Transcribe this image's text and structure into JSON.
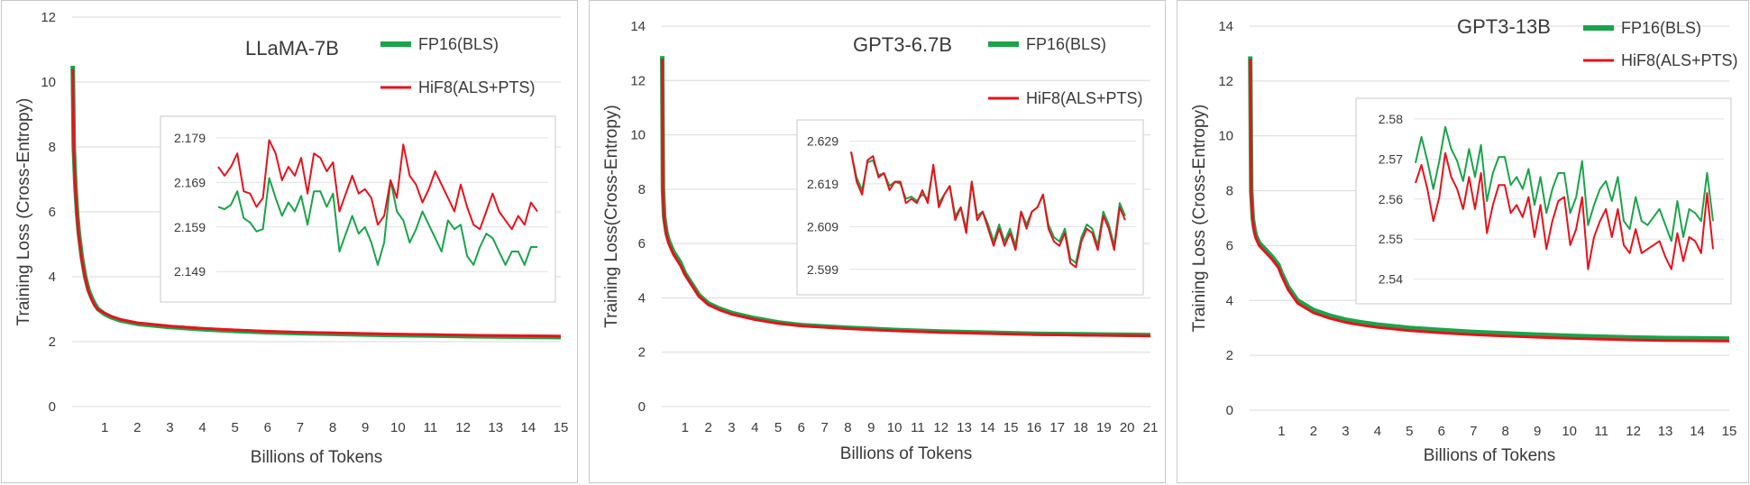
{
  "colors": {
    "fp16": "#1aa44a",
    "hif8": "#e8121b",
    "grid": "#d9d9d9",
    "axis_text": "#404040"
  },
  "chart_data": [
    {
      "type": "line",
      "title": "LLaMA-7B",
      "xlabel": "Billions of Tokens",
      "ylabel": "Training Loss (Cross-Entropy)",
      "xlim": [
        0,
        15
      ],
      "ylim": [
        0,
        12
      ],
      "xticks": [
        "1",
        "2",
        "3",
        "4",
        "5",
        "6",
        "7",
        "8",
        "9",
        "10",
        "11",
        "12",
        "13",
        "14",
        "15"
      ],
      "yticks": [
        "0",
        "2",
        "4",
        "6",
        "8",
        "10",
        "12"
      ],
      "legend_position": "top-right",
      "series": [
        {
          "name": "FP16(BLS)",
          "key": "fp16",
          "x": [
            0.02,
            0.05,
            0.1,
            0.15,
            0.2,
            0.3,
            0.4,
            0.5,
            0.6,
            0.7,
            0.8,
            1,
            1.2,
            1.5,
            2,
            2.5,
            3,
            4,
            5,
            6,
            7,
            8,
            9,
            10,
            11,
            12,
            13,
            14,
            15
          ],
          "y": [
            10.5,
            8.0,
            6.8,
            6.0,
            5.4,
            4.6,
            4.0,
            3.6,
            3.35,
            3.15,
            3.0,
            2.85,
            2.75,
            2.65,
            2.55,
            2.5,
            2.45,
            2.38,
            2.33,
            2.29,
            2.26,
            2.24,
            2.22,
            2.2,
            2.19,
            2.17,
            2.16,
            2.15,
            2.14
          ]
        },
        {
          "name": "HiF8(ALS+PTS)",
          "key": "hif8",
          "x": [
            0.02,
            0.05,
            0.1,
            0.15,
            0.2,
            0.3,
            0.4,
            0.5,
            0.6,
            0.7,
            0.8,
            1,
            1.2,
            1.5,
            2,
            2.5,
            3,
            4,
            5,
            6,
            7,
            8,
            9,
            10,
            11,
            12,
            13,
            14,
            15
          ],
          "y": [
            10.4,
            7.9,
            6.7,
            5.9,
            5.3,
            4.5,
            3.95,
            3.55,
            3.3,
            3.1,
            2.98,
            2.88,
            2.78,
            2.68,
            2.58,
            2.53,
            2.48,
            2.41,
            2.36,
            2.32,
            2.29,
            2.27,
            2.25,
            2.23,
            2.22,
            2.2,
            2.19,
            2.18,
            2.17
          ]
        }
      ],
      "inset": {
        "yticks": [
          "2.179",
          "2.169",
          "2.159",
          "2.149"
        ],
        "ylim": [
          2.145,
          2.181
        ],
        "series": [
          {
            "key": "fp16",
            "y": [
              2.1635,
              2.163,
              2.164,
              2.167,
              2.161,
              2.16,
              2.158,
              2.1585,
              2.17,
              2.1655,
              2.1615,
              2.1645,
              2.1625,
              2.166,
              2.1595,
              2.167,
              2.167,
              2.1635,
              2.1665,
              2.1535,
              2.1575,
              2.1615,
              2.1575,
              2.159,
              2.1555,
              2.1505,
              2.1555,
              2.1695,
              2.1625,
              2.1605,
              2.1555,
              2.1585,
              2.1625,
              2.1595,
              2.1565,
              2.1535,
              2.1605,
              2.1585,
              2.1595,
              2.1525,
              2.1505,
              2.1545,
              2.1575,
              2.1565,
              2.1535,
              2.1505,
              2.1535,
              2.1535,
              2.1505,
              2.1545,
              2.1545
            ]
          },
          {
            "key": "hif8",
            "y": [
              2.1725,
              2.1705,
              2.1725,
              2.1755,
              2.167,
              2.1665,
              2.1635,
              2.1655,
              2.1785,
              2.1755,
              2.1695,
              2.1725,
              2.1705,
              2.1745,
              2.1665,
              2.1755,
              2.1745,
              2.1715,
              2.1735,
              2.1625,
              2.1665,
              2.1705,
              2.1665,
              2.1675,
              2.1655,
              2.1595,
              2.1615,
              2.1695,
              2.1655,
              2.1775,
              2.1705,
              2.1685,
              2.1645,
              2.1675,
              2.1715,
              2.1685,
              2.1655,
              2.1625,
              2.1685,
              2.1635,
              2.1595,
              2.1585,
              2.1625,
              2.1665,
              2.1625,
              2.1605,
              2.1585,
              2.1615,
              2.1595,
              2.1645,
              2.1625
            ]
          }
        ]
      }
    },
    {
      "type": "line",
      "title": "GPT3-6.7B",
      "xlabel": "Billions of Tokens",
      "ylabel": "Training Loss(Cross-Entropy)",
      "xlim": [
        0,
        21
      ],
      "ylim": [
        0,
        14
      ],
      "xticks": [
        "1",
        "2",
        "3",
        "4",
        "5",
        "6",
        "7",
        "8",
        "9",
        "10",
        "11",
        "12",
        "13",
        "14",
        "15",
        "16",
        "17",
        "18",
        "19",
        "20",
        "21"
      ],
      "yticks": [
        "0",
        "2",
        "4",
        "6",
        "8",
        "10",
        "12",
        "14"
      ],
      "legend_position": "top-right",
      "series": [
        {
          "name": "FP16(BLS)",
          "key": "fp16",
          "x": [
            0.02,
            0.05,
            0.1,
            0.2,
            0.3,
            0.5,
            0.8,
            1,
            1.3,
            1.6,
            2,
            2.5,
            3,
            3.5,
            4,
            5,
            6,
            7,
            8,
            9,
            10,
            11,
            12,
            13,
            14,
            15,
            16,
            17,
            18,
            19,
            20,
            21
          ],
          "y": [
            12.9,
            8.0,
            7.0,
            6.4,
            6.1,
            5.7,
            5.3,
            4.9,
            4.5,
            4.1,
            3.8,
            3.6,
            3.45,
            3.35,
            3.25,
            3.1,
            3.0,
            2.95,
            2.9,
            2.86,
            2.82,
            2.79,
            2.76,
            2.74,
            2.72,
            2.7,
            2.68,
            2.67,
            2.66,
            2.65,
            2.64,
            2.63
          ]
        },
        {
          "name": "HiF8(ALS+PTS)",
          "key": "hif8",
          "x": [
            0.02,
            0.05,
            0.1,
            0.2,
            0.3,
            0.5,
            0.8,
            1,
            1.3,
            1.6,
            2,
            2.5,
            3,
            3.5,
            4,
            5,
            6,
            7,
            8,
            9,
            10,
            11,
            12,
            13,
            14,
            15,
            16,
            17,
            18,
            19,
            20,
            21
          ],
          "y": [
            12.8,
            7.9,
            6.9,
            6.3,
            6.0,
            5.6,
            5.2,
            4.85,
            4.45,
            4.05,
            3.75,
            3.55,
            3.4,
            3.3,
            3.2,
            3.06,
            2.97,
            2.92,
            2.87,
            2.83,
            2.79,
            2.76,
            2.73,
            2.71,
            2.69,
            2.67,
            2.65,
            2.64,
            2.63,
            2.62,
            2.61,
            2.6
          ]
        }
      ],
      "inset": {
        "yticks": [
          "2.629",
          "2.619",
          "2.609",
          "2.599"
        ],
        "ylim": [
          2.596,
          2.631
        ],
        "series": [
          {
            "key": "fp16",
            "y": [
              2.6265,
              2.6205,
              2.6175,
              2.624,
              2.6245,
              2.621,
              2.6215,
              2.6185,
              2.6195,
              2.619,
              2.6155,
              2.616,
              2.615,
              2.6165,
              2.6155,
              2.623,
              2.6145,
              2.6165,
              2.6185,
              2.6115,
              2.6135,
              2.6085,
              2.6195,
              2.6115,
              2.6125,
              2.6095,
              2.6055,
              2.6095,
              2.6055,
              2.6085,
              2.6045,
              2.6125,
              2.6095,
              2.6125,
              2.6135,
              2.6165,
              2.6095,
              2.6065,
              2.6055,
              2.6085,
              2.6015,
              2.6005,
              2.6065,
              2.6095,
              2.6085,
              2.6045,
              2.6125,
              2.6095,
              2.6045,
              2.6145,
              2.6115
            ]
          },
          {
            "key": "hif8",
            "y": [
              2.6265,
              2.6195,
              2.6165,
              2.6245,
              2.6255,
              2.6205,
              2.6215,
              2.6175,
              2.6195,
              2.6195,
              2.6145,
              2.6155,
              2.6145,
              2.6175,
              2.6145,
              2.6235,
              2.6135,
              2.6165,
              2.6185,
              2.6105,
              2.6135,
              2.6075,
              2.6195,
              2.6105,
              2.6125,
              2.6085,
              2.6045,
              2.6085,
              2.6045,
              2.6075,
              2.6035,
              2.6125,
              2.6085,
              2.6125,
              2.6135,
              2.6165,
              2.6085,
              2.6055,
              2.6045,
              2.6075,
              2.6005,
              2.5995,
              2.6055,
              2.6085,
              2.6075,
              2.6035,
              2.6115,
              2.6085,
              2.6035,
              2.6135,
              2.6105
            ]
          }
        ]
      }
    },
    {
      "type": "line",
      "title": "GPT3-13B",
      "xlabel": "Billions of Tokens",
      "ylabel": "Training Loss (Cross-Entropy)",
      "xlim": [
        0,
        15
      ],
      "ylim": [
        0,
        14
      ],
      "xticks": [
        "1",
        "2",
        "3",
        "4",
        "5",
        "6",
        "7",
        "8",
        "9",
        "10",
        "11",
        "12",
        "13",
        "14",
        "15"
      ],
      "yticks": [
        "0",
        "2",
        "4",
        "6",
        "8",
        "10",
        "12",
        "14"
      ],
      "legend_position": "top-right",
      "series": [
        {
          "name": "FP16(BLS)",
          "key": "fp16",
          "x": [
            0.02,
            0.05,
            0.1,
            0.15,
            0.2,
            0.3,
            0.5,
            0.7,
            0.9,
            1,
            1.2,
            1.5,
            2,
            2.5,
            3,
            3.5,
            4,
            5,
            6,
            7,
            8,
            9,
            10,
            11,
            12,
            13,
            14,
            15
          ],
          "y": [
            12.9,
            8.0,
            7.0,
            6.6,
            6.35,
            6.1,
            5.85,
            5.6,
            5.3,
            5.0,
            4.5,
            4.0,
            3.65,
            3.45,
            3.3,
            3.2,
            3.12,
            3.0,
            2.92,
            2.85,
            2.8,
            2.75,
            2.71,
            2.68,
            2.65,
            2.63,
            2.62,
            2.61
          ]
        },
        {
          "name": "HiF8(ALS+PTS)",
          "key": "hif8",
          "x": [
            0.02,
            0.05,
            0.1,
            0.15,
            0.2,
            0.3,
            0.5,
            0.7,
            0.9,
            1,
            1.2,
            1.5,
            2,
            2.5,
            3,
            3.5,
            4,
            5,
            6,
            7,
            8,
            9,
            10,
            11,
            12,
            13,
            14,
            15
          ],
          "y": [
            12.8,
            7.9,
            6.9,
            6.5,
            6.25,
            6.0,
            5.75,
            5.5,
            5.2,
            4.9,
            4.4,
            3.9,
            3.55,
            3.35,
            3.2,
            3.1,
            3.02,
            2.9,
            2.82,
            2.75,
            2.7,
            2.66,
            2.62,
            2.59,
            2.56,
            2.54,
            2.53,
            2.52
          ]
        }
      ],
      "inset": {
        "yticks": [
          "2.58",
          "2.57",
          "2.56",
          "2.55",
          "2.54"
        ],
        "ylim": [
          2.537,
          2.582
        ],
        "series": [
          {
            "key": "fp16",
            "y": [
              2.569,
              2.5755,
              2.5695,
              2.5625,
              2.5695,
              2.578,
              2.5725,
              2.5695,
              2.5645,
              2.5725,
              2.5655,
              2.5735,
              2.5595,
              2.5665,
              2.5705,
              2.5705,
              2.5635,
              2.5655,
              2.5625,
              2.5675,
              2.5585,
              2.5655,
              2.5565,
              2.5625,
              2.5665,
              2.5665,
              2.5565,
              2.5605,
              2.5695,
              2.5535,
              2.5585,
              2.5625,
              2.5645,
              2.5595,
              2.5655,
              2.5545,
              2.5525,
              2.5605,
              2.5545,
              2.5535,
              2.5555,
              2.5575,
              2.5535,
              2.5495,
              2.5595,
              2.5505,
              2.5575,
              2.5565,
              2.5545,
              2.5665,
              2.5545
            ]
          },
          {
            "key": "hif8",
            "y": [
              2.564,
              2.5685,
              2.5625,
              2.5545,
              2.5605,
              2.5715,
              2.5655,
              2.5625,
              2.5575,
              2.5655,
              2.5575,
              2.5665,
              2.5515,
              2.5585,
              2.5635,
              2.5635,
              2.5565,
              2.5585,
              2.5555,
              2.5605,
              2.5505,
              2.5585,
              2.5475,
              2.5545,
              2.5595,
              2.5605,
              2.5485,
              2.5525,
              2.5605,
              2.5425,
              2.5505,
              2.5545,
              2.5575,
              2.5505,
              2.5575,
              2.5485,
              2.5465,
              2.5525,
              2.5465,
              2.5475,
              2.5485,
              2.5495,
              2.5455,
              2.5425,
              2.5515,
              2.5445,
              2.5505,
              2.5495,
              2.5465,
              2.5615,
              2.5475
            ]
          }
        ]
      }
    }
  ]
}
